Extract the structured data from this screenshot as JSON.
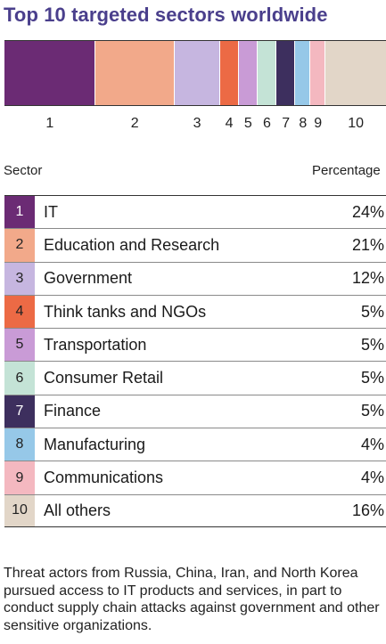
{
  "title": "Top 10 targeted sectors worldwide",
  "table": {
    "sector_header": "Sector",
    "percentage_header": "Percentage"
  },
  "chart_data": {
    "type": "bar",
    "title": "Top 10 targeted sectors worldwide",
    "categories": [
      "1",
      "2",
      "3",
      "4",
      "5",
      "6",
      "7",
      "8",
      "9",
      "10"
    ],
    "sectors": [
      "IT",
      "Education and Research",
      "Government",
      "Think tanks and NGOs",
      "Transportation",
      "Consumer Retail",
      "Finance",
      "Manufacturing",
      "Communications",
      "All others"
    ],
    "values": [
      24,
      21,
      12,
      5,
      5,
      5,
      5,
      4,
      4,
      16
    ],
    "labels": [
      "24%",
      "21%",
      "12%",
      "5%",
      "5%",
      "5%",
      "5%",
      "4%",
      "4%",
      "16%"
    ],
    "colors": [
      "#6b2b74",
      "#f2a98a",
      "#c6b6e0",
      "#ec6a45",
      "#c99bd6",
      "#c4e3d6",
      "#3d2f5e",
      "#96c8e8",
      "#f4b8c0",
      "#e2d6c8"
    ],
    "text_colors": [
      "dark",
      "light",
      "light",
      "light",
      "light",
      "light",
      "dark",
      "light",
      "light",
      "light"
    ],
    "stacked": true
  },
  "note": "Threat actors from Russia, China, Iran, and North Korea pursued access to IT products and services, in part to conduct supply chain attacks against government and other sensitive organizations."
}
